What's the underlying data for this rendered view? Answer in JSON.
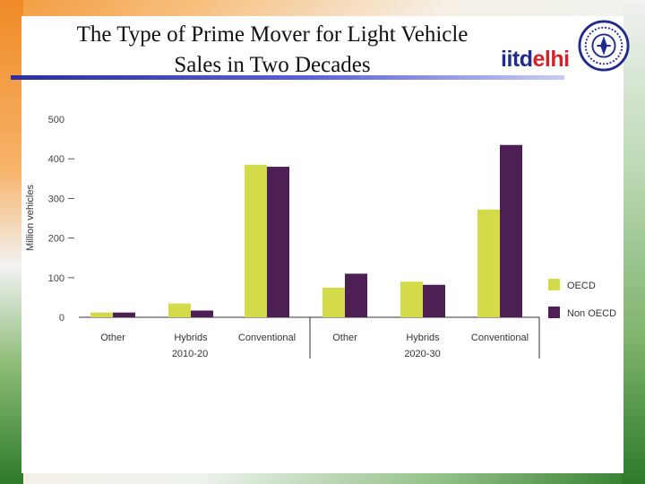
{
  "slide": {
    "title_line1": "The Type of Prime Mover for Light Vehicle",
    "title_line2": "Sales in Two Decades",
    "brand_prefix": "iitd",
    "brand_suffix": "elhi",
    "colors": {
      "oecd": "#d4db4a",
      "non_oecd": "#4d1f55",
      "title_rule": "#2b2fa0"
    }
  },
  "chart_data": {
    "type": "bar",
    "title": "The Type of Prime Mover for Light Vehicle Sales in Two Decades",
    "ylabel": "Million vehicles",
    "ylim": [
      0,
      500
    ],
    "yticks": [
      0,
      100,
      200,
      300,
      400,
      500
    ],
    "categories": [
      "Other",
      "Hybrids",
      "Conventional",
      "Other",
      "Hybrids",
      "Conventional"
    ],
    "groups": [
      {
        "label": "2010-20",
        "categories": [
          0,
          1,
          2
        ]
      },
      {
        "label": "2020-30",
        "categories": [
          3,
          4,
          5
        ]
      }
    ],
    "series": [
      {
        "name": "OECD",
        "color": "#d4db4a",
        "values": [
          12,
          35,
          385,
          75,
          90,
          272
        ]
      },
      {
        "name": "Non OECD",
        "color": "#4d1f55",
        "values": [
          12,
          17,
          380,
          110,
          82,
          435
        ]
      }
    ],
    "legend": "right"
  }
}
